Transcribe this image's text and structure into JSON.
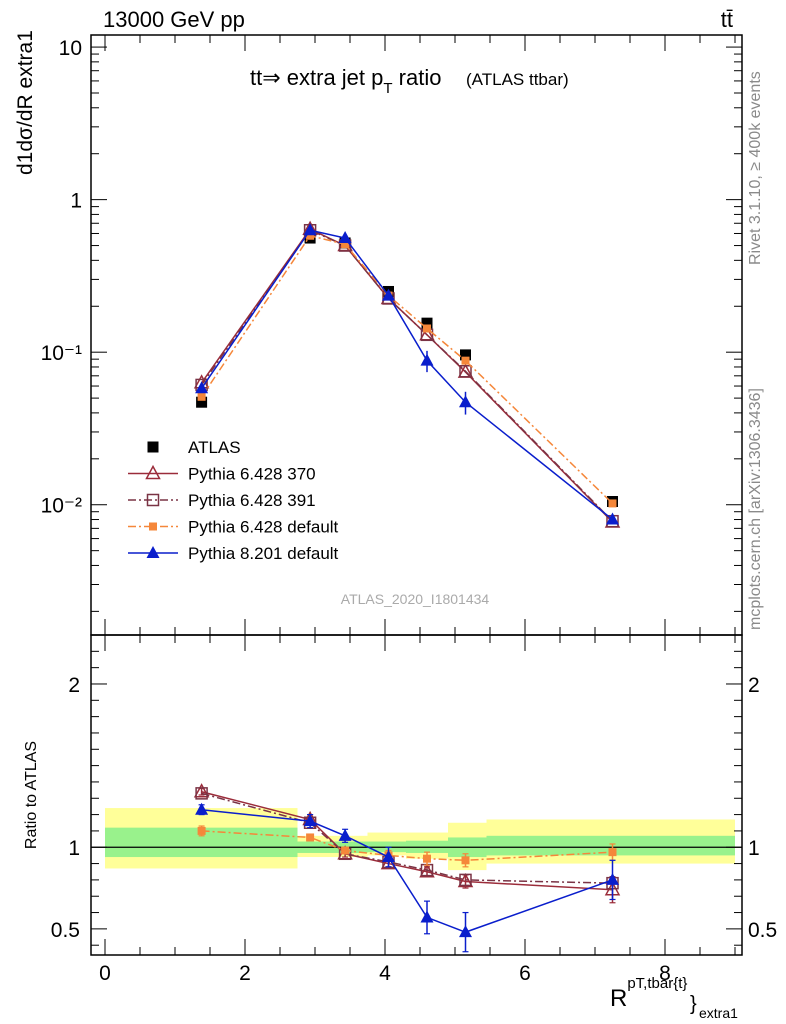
{
  "header": {
    "energy": "13000 GeV pp",
    "process": "tt̄"
  },
  "side_labels": {
    "rivet": "Rivet 3.1.10, ≥ 400k events",
    "mcplots": "mcplots.cern.ch [arXiv:1306.3436]"
  },
  "chart_data": [
    {
      "type": "scatter",
      "panel": "main",
      "title": "tt⇒ extra jet p",
      "title_sub": "T",
      "title_tail": " ratio",
      "title_note": "(ATLAS ttbar)",
      "watermark": "ATLAS_2020_I1801434",
      "ylabel": "d1dσ/dR extra1",
      "yscale": "log",
      "ylim": [
        0.0014,
        12
      ],
      "xlim": [
        -0.2,
        9.1
      ],
      "ytick_labels": [
        "10",
        "1",
        "10⁻¹",
        "10⁻²"
      ],
      "ytick_values": [
        10,
        1,
        0.1,
        0.01
      ],
      "legend_position": "lower-left",
      "x": [
        1.38,
        2.93,
        3.43,
        4.05,
        4.6,
        5.15,
        7.25
      ],
      "series": [
        {
          "name": "ATLAS",
          "color": "#000000",
          "marker": "square",
          "values": [
            0.047,
            0.56,
            0.52,
            0.25,
            0.155,
            0.096,
            0.0105
          ]
        },
        {
          "name": "Pythia 6.428 370",
          "color": "#9b2c3a",
          "marker": "triangle-open",
          "line": "solid",
          "values": [
            0.063,
            0.64,
            0.5,
            0.225,
            0.13,
            0.074,
            0.0077
          ]
        },
        {
          "name": "Pythia 6.428 391",
          "color": "#7a3345",
          "marker": "square-open",
          "line": "dashdot",
          "values": [
            0.061,
            0.63,
            0.5,
            0.225,
            0.13,
            0.075,
            0.0078
          ]
        },
        {
          "name": "Pythia 6.428 default",
          "color": "#f5873a",
          "marker": "square-small",
          "line": "dashdot",
          "values": [
            0.051,
            0.58,
            0.51,
            0.235,
            0.143,
            0.088,
            0.0102
          ]
        },
        {
          "name": "Pythia 8.201 default",
          "color": "#0a1ecc",
          "marker": "triangle",
          "line": "solid",
          "values": [
            0.058,
            0.63,
            0.56,
            0.235,
            0.088,
            0.047,
            0.008
          ]
        }
      ],
      "errors": {
        "Pythia 8.201 default": [
          null,
          null,
          null,
          null,
          0.014,
          0.008,
          null
        ]
      }
    },
    {
      "type": "scatter",
      "panel": "ratio",
      "ylabel": "Ratio to ATLAS",
      "xlabel": "R",
      "xlabel_sup": "pT,tbar{t}",
      "xlabel_sub": "}",
      "xlabel_sub2": "extra1",
      "ylim": [
        0.34,
        2.3
      ],
      "xlim": [
        -0.2,
        9.1
      ],
      "xtick_labels": [
        "0",
        "2",
        "4",
        "6",
        "8"
      ],
      "xtick_values": [
        0,
        2,
        4,
        6,
        8
      ],
      "ytick_labels": [
        "2",
        "1",
        "0.5"
      ],
      "ytick_values": [
        2,
        1,
        0.5
      ],
      "bands": {
        "edges": [
          0,
          2.75,
          3.15,
          3.75,
          4.3,
          4.9,
          5.45,
          9
        ],
        "yellow": [
          [
            0.87,
            1.24
          ],
          [
            0.94,
            1.07
          ],
          [
            0.94,
            1.07
          ],
          [
            0.95,
            1.09
          ],
          [
            0.93,
            1.09
          ],
          [
            0.86,
            1.15
          ],
          [
            0.9,
            1.17
          ]
        ],
        "green": [
          [
            0.94,
            1.12
          ],
          [
            0.965,
            1.035
          ],
          [
            0.965,
            1.035
          ],
          [
            0.97,
            1.035
          ],
          [
            0.965,
            1.04
          ],
          [
            0.94,
            1.06
          ],
          [
            0.95,
            1.07
          ]
        ]
      },
      "x": [
        1.38,
        2.93,
        3.43,
        4.05,
        4.6,
        5.15,
        7.25
      ],
      "series": [
        {
          "name": "Pythia 6.428 370",
          "color": "#9b2c3a",
          "marker": "triangle-open",
          "line": "solid",
          "values": [
            1.34,
            1.17,
            0.96,
            0.9,
            0.85,
            0.79,
            0.74
          ]
        },
        {
          "name": "Pythia 6.428 391",
          "color": "#7a3345",
          "marker": "square-open",
          "line": "dashdot",
          "values": [
            1.33,
            1.15,
            0.96,
            0.91,
            0.86,
            0.8,
            0.78
          ]
        },
        {
          "name": "Pythia 6.428 default",
          "color": "#f5873a",
          "marker": "square-small",
          "line": "dashdot",
          "values": [
            1.1,
            1.06,
            0.98,
            0.95,
            0.93,
            0.92,
            0.97
          ]
        },
        {
          "name": "Pythia 8.201 default",
          "color": "#0a1ecc",
          "marker": "triangle",
          "line": "solid",
          "values": [
            1.23,
            1.16,
            1.07,
            0.94,
            0.57,
            0.48,
            0.8
          ]
        }
      ],
      "errors": {
        "Pythia 6.428 370": [
          0.02,
          0.03,
          0.02,
          0.02,
          0.03,
          0.04,
          0.08
        ],
        "Pythia 6.428 default": [
          0.03,
          0.02,
          0.02,
          0.03,
          0.04,
          0.04,
          0.05
        ],
        "Pythia 8.201 default": [
          0.03,
          0.04,
          0.04,
          0.06,
          0.1,
          0.12,
          0.12
        ]
      }
    }
  ]
}
